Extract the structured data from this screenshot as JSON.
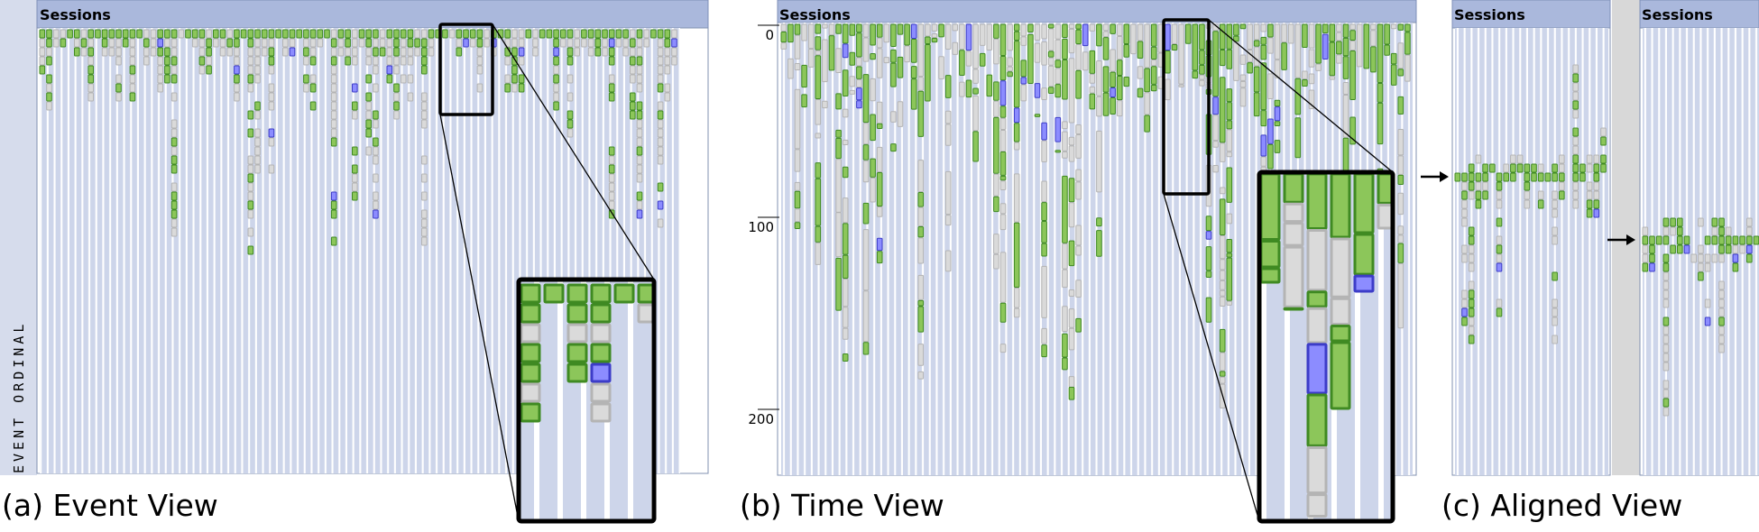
{
  "panels": [
    {
      "header": "Sessions",
      "caption": "(a) Event View",
      "axis_label": "EVENT ORDINAL"
    },
    {
      "header": "Sessions",
      "caption": "(b) Time View",
      "ticks": [
        0,
        100,
        200
      ]
    },
    {
      "header": "Sessions",
      "caption": "(c) Aligned View"
    },
    {
      "header": "Sessions"
    }
  ]
}
